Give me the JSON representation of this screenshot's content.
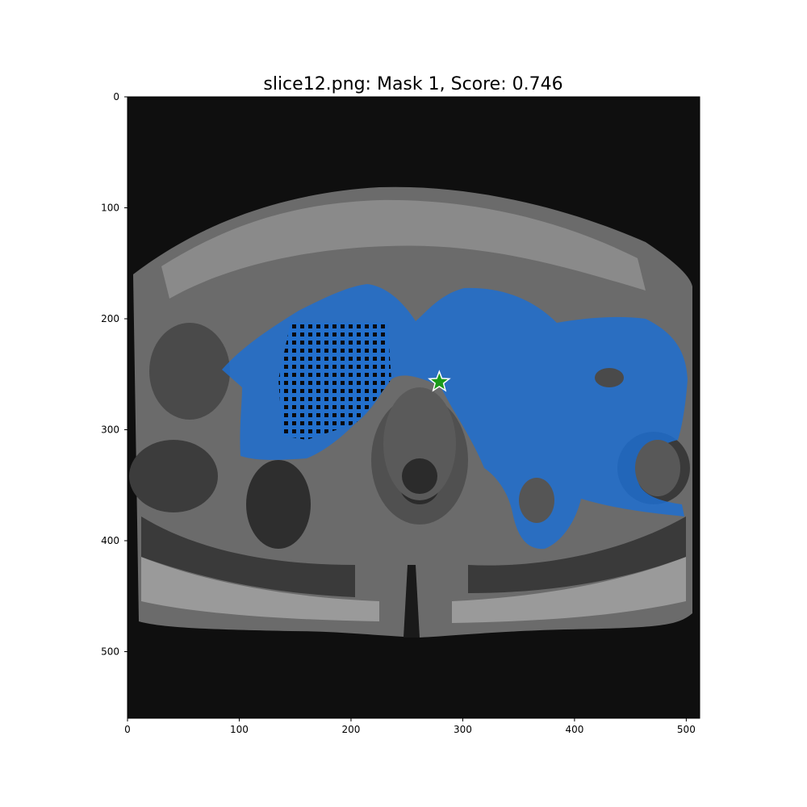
{
  "title": "slice12.png: Mask 1, Score: 0.746",
  "image": {
    "x_range": [
      0,
      512
    ],
    "y_range": [
      0,
      560
    ]
  },
  "axes": {
    "x_ticks": [
      0,
      100,
      200,
      300,
      400,
      500
    ],
    "y_ticks": [
      0,
      100,
      200,
      300,
      400,
      500
    ]
  },
  "prompt_point": {
    "x": 279,
    "y": 257,
    "marker": "green-star"
  },
  "colors": {
    "mask": "#1e6fd0",
    "star_fill": "#1a9a1a",
    "background": "#0f0f0f"
  }
}
